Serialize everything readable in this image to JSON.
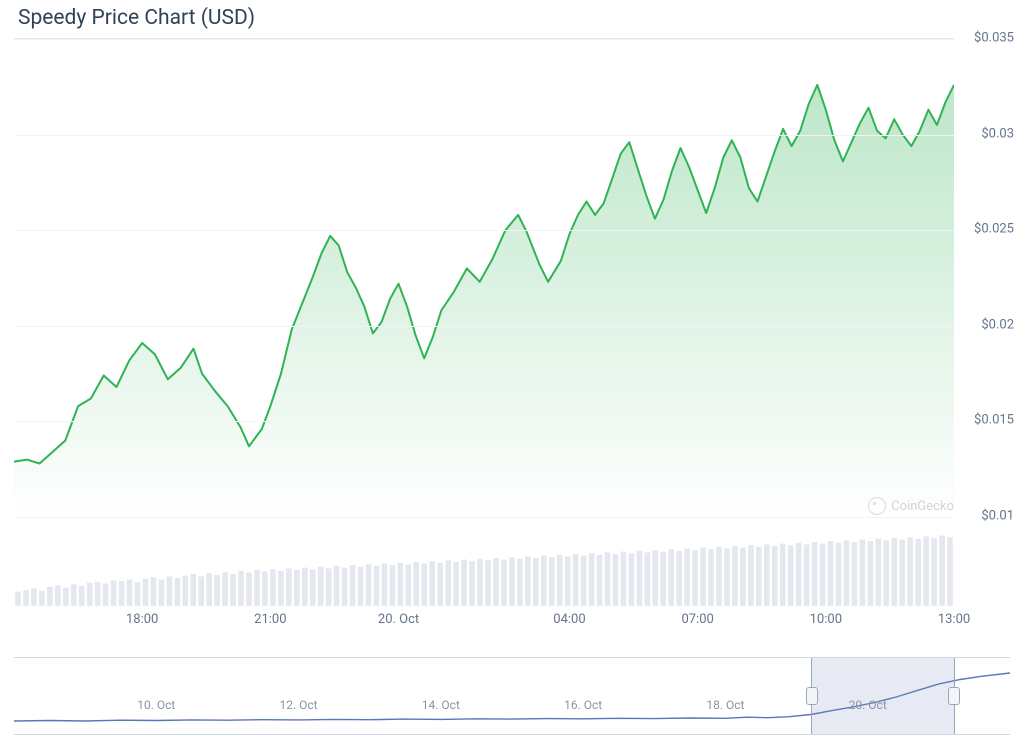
{
  "title": "Speedy Price Chart (USD)",
  "watermark": "CoinGecko",
  "chart": {
    "type": "line-area",
    "line_color": "#2fb355",
    "line_width": 2,
    "area_top_color": "rgba(108,200,134,0.45)",
    "area_bottom_color": "rgba(108,200,134,0.0)",
    "background_color": "#ffffff",
    "grid_color": "#f1f3f6",
    "axis_text_color": "#64748b",
    "ylim": [
      0.01,
      0.035
    ],
    "yticks": [
      0.01,
      0.015,
      0.02,
      0.025,
      0.03,
      0.035
    ],
    "ytick_labels": [
      "$0.01",
      "$0.015",
      "$0.02",
      "$0.025",
      "$0.03",
      "$0.035"
    ],
    "xlim": [
      15,
      37
    ],
    "xticks": [
      18,
      21,
      24,
      28,
      31,
      34,
      37
    ],
    "xtick_labels": [
      "18:00",
      "21:00",
      "20. Oct",
      "04:00",
      "07:00",
      "10:00",
      "13:00"
    ],
    "series": [
      [
        15.0,
        0.0129
      ],
      [
        15.3,
        0.013
      ],
      [
        15.6,
        0.0128
      ],
      [
        15.9,
        0.0134
      ],
      [
        16.2,
        0.014
      ],
      [
        16.5,
        0.0158
      ],
      [
        16.8,
        0.0162
      ],
      [
        17.1,
        0.0174
      ],
      [
        17.4,
        0.0168
      ],
      [
        17.7,
        0.0182
      ],
      [
        18.0,
        0.0191
      ],
      [
        18.3,
        0.0185
      ],
      [
        18.6,
        0.0172
      ],
      [
        18.9,
        0.0178
      ],
      [
        19.2,
        0.0188
      ],
      [
        19.4,
        0.0175
      ],
      [
        19.7,
        0.0166
      ],
      [
        20.0,
        0.0158
      ],
      [
        20.3,
        0.0147
      ],
      [
        20.5,
        0.0137
      ],
      [
        20.8,
        0.0146
      ],
      [
        21.0,
        0.0158
      ],
      [
        21.25,
        0.0175
      ],
      [
        21.5,
        0.0198
      ],
      [
        21.75,
        0.0212
      ],
      [
        22.0,
        0.0226
      ],
      [
        22.2,
        0.0238
      ],
      [
        22.4,
        0.0247
      ],
      [
        22.6,
        0.0242
      ],
      [
        22.8,
        0.0228
      ],
      [
        23.0,
        0.022
      ],
      [
        23.2,
        0.021
      ],
      [
        23.4,
        0.0196
      ],
      [
        23.6,
        0.0202
      ],
      [
        23.8,
        0.0214
      ],
      [
        24.0,
        0.0222
      ],
      [
        24.2,
        0.021
      ],
      [
        24.4,
        0.0195
      ],
      [
        24.6,
        0.0183
      ],
      [
        24.8,
        0.0194
      ],
      [
        25.0,
        0.0208
      ],
      [
        25.3,
        0.0218
      ],
      [
        25.6,
        0.023
      ],
      [
        25.9,
        0.0223
      ],
      [
        26.2,
        0.0235
      ],
      [
        26.5,
        0.025
      ],
      [
        26.8,
        0.0258
      ],
      [
        27.0,
        0.0249
      ],
      [
        27.3,
        0.0232
      ],
      [
        27.5,
        0.0223
      ],
      [
        27.8,
        0.0234
      ],
      [
        28.0,
        0.0248
      ],
      [
        28.2,
        0.0258
      ],
      [
        28.4,
        0.0265
      ],
      [
        28.6,
        0.0258
      ],
      [
        28.8,
        0.0264
      ],
      [
        29.0,
        0.0277
      ],
      [
        29.2,
        0.029
      ],
      [
        29.4,
        0.0296
      ],
      [
        29.6,
        0.0282
      ],
      [
        29.8,
        0.0268
      ],
      [
        30.0,
        0.0256
      ],
      [
        30.2,
        0.0266
      ],
      [
        30.4,
        0.0281
      ],
      [
        30.6,
        0.0293
      ],
      [
        30.8,
        0.0283
      ],
      [
        31.0,
        0.0271
      ],
      [
        31.2,
        0.0259
      ],
      [
        31.4,
        0.0272
      ],
      [
        31.6,
        0.0288
      ],
      [
        31.8,
        0.0297
      ],
      [
        32.0,
        0.0288
      ],
      [
        32.2,
        0.0272
      ],
      [
        32.4,
        0.0265
      ],
      [
        32.6,
        0.0278
      ],
      [
        32.8,
        0.0291
      ],
      [
        33.0,
        0.0303
      ],
      [
        33.2,
        0.0294
      ],
      [
        33.4,
        0.0302
      ],
      [
        33.6,
        0.0316
      ],
      [
        33.8,
        0.0326
      ],
      [
        34.0,
        0.0313
      ],
      [
        34.2,
        0.0297
      ],
      [
        34.4,
        0.0286
      ],
      [
        34.6,
        0.0296
      ],
      [
        34.8,
        0.0306
      ],
      [
        35.0,
        0.0314
      ],
      [
        35.2,
        0.0302
      ],
      [
        35.4,
        0.0298
      ],
      [
        35.6,
        0.0308
      ],
      [
        35.8,
        0.03
      ],
      [
        36.0,
        0.0294
      ],
      [
        36.2,
        0.0302
      ],
      [
        36.4,
        0.0313
      ],
      [
        36.6,
        0.0305
      ],
      [
        36.8,
        0.0317
      ],
      [
        37.0,
        0.0326
      ]
    ]
  },
  "volume": {
    "bar_color": "#e4e7ed",
    "baseline": 0,
    "max": 100,
    "values": [
      18,
      20,
      22,
      19,
      24,
      26,
      23,
      27,
      25,
      29,
      30,
      28,
      32,
      31,
      33,
      30,
      34,
      36,
      33,
      37,
      35,
      38,
      40,
      37,
      41,
      39,
      42,
      40,
      44,
      42,
      45,
      43,
      46,
      44,
      47,
      45,
      48,
      46,
      49,
      47,
      50,
      48,
      51,
      49,
      52,
      50,
      53,
      51,
      54,
      52,
      55,
      53,
      56,
      54,
      57,
      55,
      58,
      56,
      59,
      57,
      60,
      58,
      61,
      59,
      62,
      60,
      63,
      61,
      64,
      62,
      65,
      63,
      66,
      64,
      67,
      65,
      68,
      66,
      69,
      67,
      70,
      68,
      71,
      69,
      72,
      70,
      73,
      71,
      74,
      72,
      75,
      73,
      76,
      74,
      77,
      75,
      78,
      76,
      79,
      77,
      80,
      78,
      81,
      79,
      82,
      80,
      83,
      81,
      84,
      82,
      85,
      83,
      86,
      84,
      87,
      85,
      88,
      86
    ]
  },
  "navigator": {
    "line_color": "#5b76b8",
    "line_width": 1.4,
    "xlim": [
      8,
      22
    ],
    "xticks": [
      10,
      12,
      14,
      16,
      18,
      20
    ],
    "xtick_labels": [
      "10. Oct",
      "12. Oct",
      "14. Oct",
      "16. Oct",
      "18. Oct",
      "20. Oct"
    ],
    "selection": {
      "from": 19.2,
      "to": 21.2
    },
    "series": [
      [
        8.0,
        0.06
      ],
      [
        8.5,
        0.07
      ],
      [
        9.0,
        0.06
      ],
      [
        9.5,
        0.075
      ],
      [
        10.0,
        0.07
      ],
      [
        10.5,
        0.08
      ],
      [
        11.0,
        0.075
      ],
      [
        11.5,
        0.085
      ],
      [
        12.0,
        0.08
      ],
      [
        12.5,
        0.09
      ],
      [
        13.0,
        0.085
      ],
      [
        13.5,
        0.095
      ],
      [
        14.0,
        0.09
      ],
      [
        14.5,
        0.1
      ],
      [
        15.0,
        0.095
      ],
      [
        15.5,
        0.105
      ],
      [
        16.0,
        0.1
      ],
      [
        16.5,
        0.11
      ],
      [
        17.0,
        0.105
      ],
      [
        17.5,
        0.115
      ],
      [
        18.0,
        0.11
      ],
      [
        18.3,
        0.13
      ],
      [
        18.6,
        0.12
      ],
      [
        18.9,
        0.14
      ],
      [
        19.2,
        0.18
      ],
      [
        19.5,
        0.25
      ],
      [
        19.8,
        0.32
      ],
      [
        20.1,
        0.4
      ],
      [
        20.4,
        0.5
      ],
      [
        20.7,
        0.62
      ],
      [
        21.0,
        0.74
      ],
      [
        21.3,
        0.82
      ],
      [
        21.6,
        0.88
      ],
      [
        22.0,
        0.94
      ]
    ]
  }
}
